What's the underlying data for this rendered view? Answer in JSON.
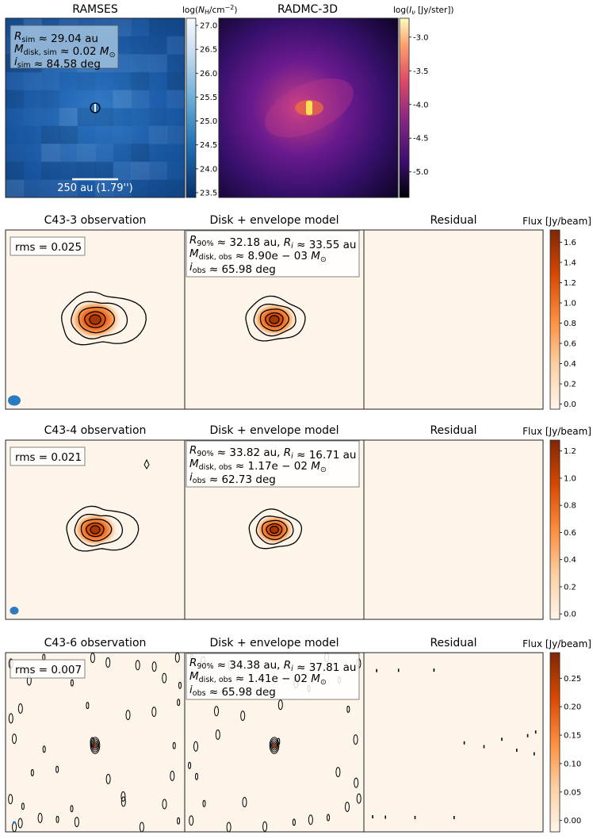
{
  "top_row": {
    "ramses": {
      "title": "RAMSES",
      "cbar_label": "log(N_H/cm^-2)",
      "cbar_ticks": [
        "27.0",
        "26.5",
        "26.0",
        "25.5",
        "25.0",
        "24.5",
        "24.0",
        "23.5"
      ],
      "cbar_range": [
        23.4,
        27.15
      ],
      "info_lines": [
        "R_sim ≈ 29.04 au",
        "M_disk,sim ≈ 0.02 M_⊙",
        "i_sim ≈ 84.58 deg"
      ],
      "scalebar_label": "250 au (1.79'')"
    },
    "radmc": {
      "title": "RADMC-3D",
      "cbar_label": "log(I_ν [Jy/ster])",
      "cbar_ticks": [
        "-3.0",
        "-3.5",
        "-4.0",
        "-4.5",
        "-5.0"
      ],
      "cbar_range": [
        -5.38,
        -2.72
      ]
    }
  },
  "rows": [
    {
      "obs_title": "C43-3 observation",
      "model_title": "Disk + envelope model",
      "resid_title": "Residual",
      "flux_label": "Flux [Jy/beam]",
      "rms": "rms = 0.025",
      "model_lines": [
        "R_90% ≈ 32.18 au, R_i ≈ 33.55 au",
        "M_disk,obs ≈ 8.90e − 03 M_⊙",
        "i_obs ≈ 65.98 deg"
      ],
      "cbar_ticks": [
        "1.6",
        "1.4",
        "1.2",
        "1.0",
        "0.8",
        "0.6",
        "0.4",
        "0.2",
        "0.0"
      ],
      "cbar_range": [
        -0.05,
        1.72
      ]
    },
    {
      "obs_title": "C43-4 observation",
      "model_title": "Disk + envelope model",
      "resid_title": "Residual",
      "flux_label": "Flux [Jy/beam]",
      "rms": "rms = 0.021",
      "model_lines": [
        "R_90% ≈ 33.82 au, R_i ≈ 16.71 au",
        "M_disk,obs ≈ 1.17e − 02 M_⊙",
        "i_obs ≈ 62.73 deg"
      ],
      "cbar_ticks": [
        "1.2",
        "1.0",
        "0.8",
        "0.6",
        "0.4",
        "0.2",
        "0.0"
      ],
      "cbar_range": [
        -0.04,
        1.28
      ]
    },
    {
      "obs_title": "C43-6 observation",
      "model_title": "Disk + envelope model",
      "resid_title": "Residual",
      "flux_label": "Flux [Jy/beam]",
      "rms": "rms = 0.007",
      "model_lines": [
        "R_90% ≈ 34.38 au, R_i ≈ 37.81 au",
        "M_disk,obs ≈ 1.41e − 02 M_⊙",
        "i_obs ≈ 65.98 deg"
      ],
      "cbar_ticks": [
        "0.25",
        "0.20",
        "0.15",
        "0.10",
        "0.05",
        "0.00"
      ],
      "cbar_range": [
        -0.02,
        0.295
      ]
    }
  ],
  "chart_data": {
    "type": "heatmap",
    "colors": {
      "ramses": "#1f5ea8",
      "radmc_bg": "#1a0633",
      "flux_low": "#fdf4ea",
      "flux_high": "#7f2704",
      "beam": "#2b7bc0"
    }
  }
}
